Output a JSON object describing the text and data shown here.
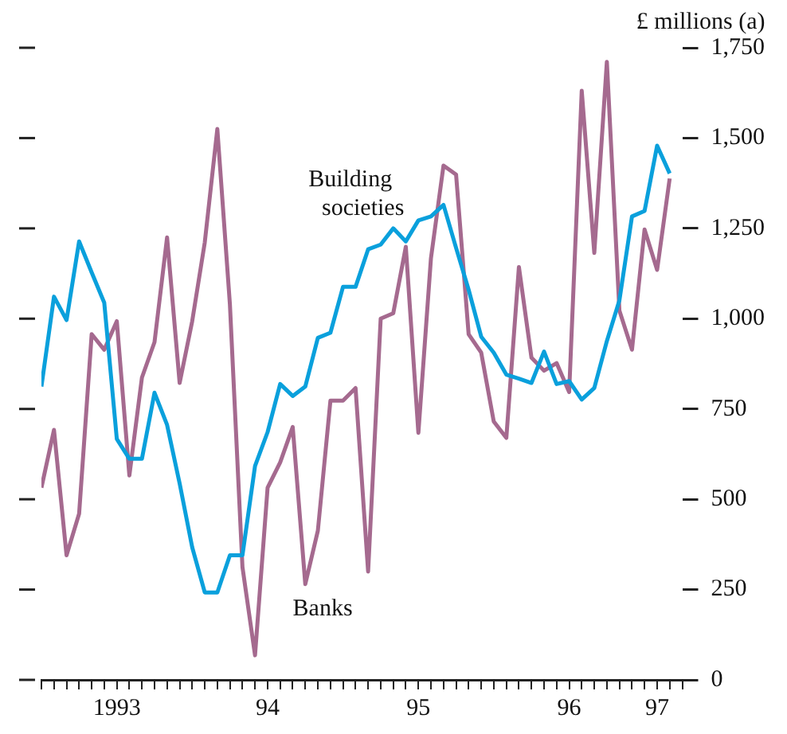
{
  "chart_data": {
    "type": "line",
    "ylabel": "£ millions (a)",
    "x": [
      "1993-01",
      "1993-02",
      "1993-03",
      "1993-04",
      "1993-05",
      "1993-06",
      "1993-07",
      "1993-08",
      "1993-09",
      "1993-10",
      "1993-11",
      "1993-12",
      "1994-01",
      "1994-02",
      "1994-03",
      "1994-04",
      "1994-05",
      "1994-06",
      "1994-07",
      "1994-08",
      "1994-09",
      "1994-10",
      "1994-11",
      "1994-12",
      "1995-01",
      "1995-02",
      "1995-03",
      "1995-04",
      "1995-05",
      "1995-06",
      "1995-07",
      "1995-08",
      "1995-09",
      "1995-10",
      "1995-11",
      "1995-12",
      "1996-01",
      "1996-02",
      "1996-03",
      "1996-04",
      "1996-05",
      "1996-06",
      "1996-07",
      "1996-08",
      "1996-09",
      "1996-10",
      "1996-11",
      "1996-12",
      "1997-01",
      "1997-02",
      "1997-03"
    ],
    "series": [
      {
        "name": "Building societies",
        "color": "#0aa0dc",
        "values": [
          812,
          1061,
          996,
          1214,
          1128,
          1044,
          667,
          612,
          612,
          795,
          706,
          544,
          367,
          242,
          242,
          345,
          345,
          592,
          686,
          819,
          786,
          812,
          947,
          961,
          1088,
          1088,
          1192,
          1205,
          1250,
          1214,
          1272,
          1283,
          1315,
          1196,
          1080,
          950,
          906,
          845,
          834,
          822,
          909,
          819,
          827,
          776,
          808,
          938,
          1051,
          1283,
          1298,
          1479,
          1402
        ]
      },
      {
        "name": "Banks",
        "color": "#a56a8f",
        "values": [
          532,
          692,
          345,
          460,
          957,
          914,
          993,
          566,
          837,
          935,
          1225,
          822,
          993,
          1211,
          1525,
          1040,
          312,
          68,
          532,
          602,
          700,
          265,
          413,
          773,
          773,
          808,
          300,
          1000,
          1015,
          1199,
          684,
          1167,
          1424,
          1399,
          957,
          906,
          715,
          670,
          1143,
          892,
          856,
          877,
          797,
          1631,
          1182,
          1711,
          1022,
          914,
          1247,
          1135,
          1388
        ]
      }
    ],
    "xlim": [
      "1993-01",
      "1997-04"
    ],
    "xticks": [
      {
        "value": "1993-01",
        "label": null
      },
      {
        "value": "1993-02",
        "label": null
      },
      {
        "value": "1993-03",
        "label": null
      },
      {
        "value": "1993-04",
        "label": null
      },
      {
        "value": "1993-05",
        "label": null
      },
      {
        "value": "1993-06",
        "label": null
      },
      {
        "value": "1993-07",
        "label": "1993"
      },
      {
        "value": "1993-08",
        "label": null
      },
      {
        "value": "1993-09",
        "label": null
      },
      {
        "value": "1993-10",
        "label": null
      },
      {
        "value": "1993-11",
        "label": null
      },
      {
        "value": "1993-12",
        "label": null
      },
      {
        "value": "1994-01",
        "label": null
      },
      {
        "value": "1994-02",
        "label": null
      },
      {
        "value": "1994-03",
        "label": null
      },
      {
        "value": "1994-04",
        "label": null
      },
      {
        "value": "1994-05",
        "label": null
      },
      {
        "value": "1994-06",
        "label": null
      },
      {
        "value": "1994-07",
        "label": "94"
      },
      {
        "value": "1994-08",
        "label": null
      },
      {
        "value": "1994-09",
        "label": null
      },
      {
        "value": "1994-10",
        "label": null
      },
      {
        "value": "1994-11",
        "label": null
      },
      {
        "value": "1994-12",
        "label": null
      },
      {
        "value": "1995-01",
        "label": null
      },
      {
        "value": "1995-02",
        "label": null
      },
      {
        "value": "1995-03",
        "label": null
      },
      {
        "value": "1995-04",
        "label": null
      },
      {
        "value": "1995-05",
        "label": null
      },
      {
        "value": "1995-06",
        "label": null
      },
      {
        "value": "1995-07",
        "label": "95"
      },
      {
        "value": "1995-08",
        "label": null
      },
      {
        "value": "1995-09",
        "label": null
      },
      {
        "value": "1995-10",
        "label": null
      },
      {
        "value": "1995-11",
        "label": null
      },
      {
        "value": "1995-12",
        "label": null
      },
      {
        "value": "1996-01",
        "label": null
      },
      {
        "value": "1996-02",
        "label": null
      },
      {
        "value": "1996-03",
        "label": null
      },
      {
        "value": "1996-04",
        "label": null
      },
      {
        "value": "1996-05",
        "label": null
      },
      {
        "value": "1996-06",
        "label": null
      },
      {
        "value": "1996-07",
        "label": "96"
      },
      {
        "value": "1996-08",
        "label": null
      },
      {
        "value": "1996-09",
        "label": null
      },
      {
        "value": "1996-10",
        "label": null
      },
      {
        "value": "1996-11",
        "label": null
      },
      {
        "value": "1996-12",
        "label": null
      },
      {
        "value": "1997-01",
        "label": null
      },
      {
        "value": "1997-02",
        "label": "97"
      },
      {
        "value": "1997-03",
        "label": null
      },
      {
        "value": "1997-04",
        "label": null
      }
    ],
    "ylim": [
      0,
      1750
    ],
    "yticks": [
      0,
      250,
      500,
      750,
      {
        "value": 1000,
        "label": "1,000"
      },
      {
        "value": 1250,
        "label": "1,250"
      },
      {
        "value": 1500,
        "label": "1,500"
      },
      {
        "value": 1750,
        "label": "1,750"
      }
    ],
    "grid": false,
    "legend": false,
    "marker": "none",
    "line_style": "solid"
  }
}
